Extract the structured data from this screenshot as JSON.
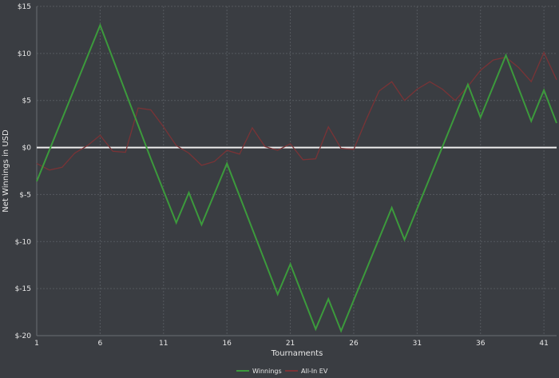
{
  "chart_data": {
    "type": "line",
    "title": "",
    "xlabel": "Tournaments",
    "ylabel": "Net Winnings in USD",
    "xlim": [
      1,
      42
    ],
    "ylim": [
      -20,
      15
    ],
    "x_ticks": [
      1,
      6,
      11,
      16,
      21,
      26,
      31,
      36,
      41
    ],
    "y_ticks": [
      {
        "value": 15,
        "label": "$15"
      },
      {
        "value": 10,
        "label": "$10"
      },
      {
        "value": 5,
        "label": "$5"
      },
      {
        "value": 0,
        "label": "$0"
      },
      {
        "value": -5,
        "label": "$-5"
      },
      {
        "value": -10,
        "label": "$-10"
      },
      {
        "value": -15,
        "label": "$-15"
      },
      {
        "value": -20,
        "label": "$-20"
      }
    ],
    "grid": true,
    "legend_position": "bottom-center",
    "zero_line_color": "#f0f0f0",
    "series": [
      {
        "name": "Winnings",
        "color": "#3c9a3c",
        "x": [
          1,
          6,
          10,
          12,
          13,
          14,
          16,
          20,
          21,
          23,
          24,
          25,
          29,
          30,
          35,
          36,
          38,
          40,
          41,
          42
        ],
        "values": [
          -3.6,
          13,
          -1.2,
          -8,
          -4.8,
          -8.2,
          -1.7,
          -15.6,
          -12.4,
          -19.3,
          -16.1,
          -19.5,
          -6.4,
          -9.8,
          6.7,
          3.2,
          9.8,
          2.8,
          6.1,
          2.6
        ]
      },
      {
        "name": "All-In EV",
        "color": "#7a3336",
        "x": [
          1,
          2,
          3,
          4,
          5,
          6,
          7,
          8,
          9,
          10,
          11,
          12,
          13,
          14,
          15,
          16,
          17,
          18,
          19,
          20,
          21,
          22,
          23,
          24,
          25,
          26,
          27,
          28,
          29,
          30,
          31,
          32,
          33,
          34,
          35,
          36,
          37,
          38,
          39,
          40,
          41,
          42
        ],
        "values": [
          -1.7,
          -2.4,
          -2.1,
          -0.6,
          0.2,
          1.3,
          -0.4,
          -0.5,
          4.2,
          4,
          2.2,
          0.2,
          -0.6,
          -1.9,
          -1.5,
          -0.3,
          -0.7,
          2.1,
          0.1,
          -0.3,
          0.4,
          -1.3,
          -1.2,
          2.2,
          -0.1,
          -0.2,
          3,
          6,
          7,
          5,
          6.2,
          7,
          6.2,
          5,
          6.5,
          8.2,
          9.3,
          9.6,
          8.5,
          7,
          10.1,
          7.2
        ]
      }
    ]
  }
}
